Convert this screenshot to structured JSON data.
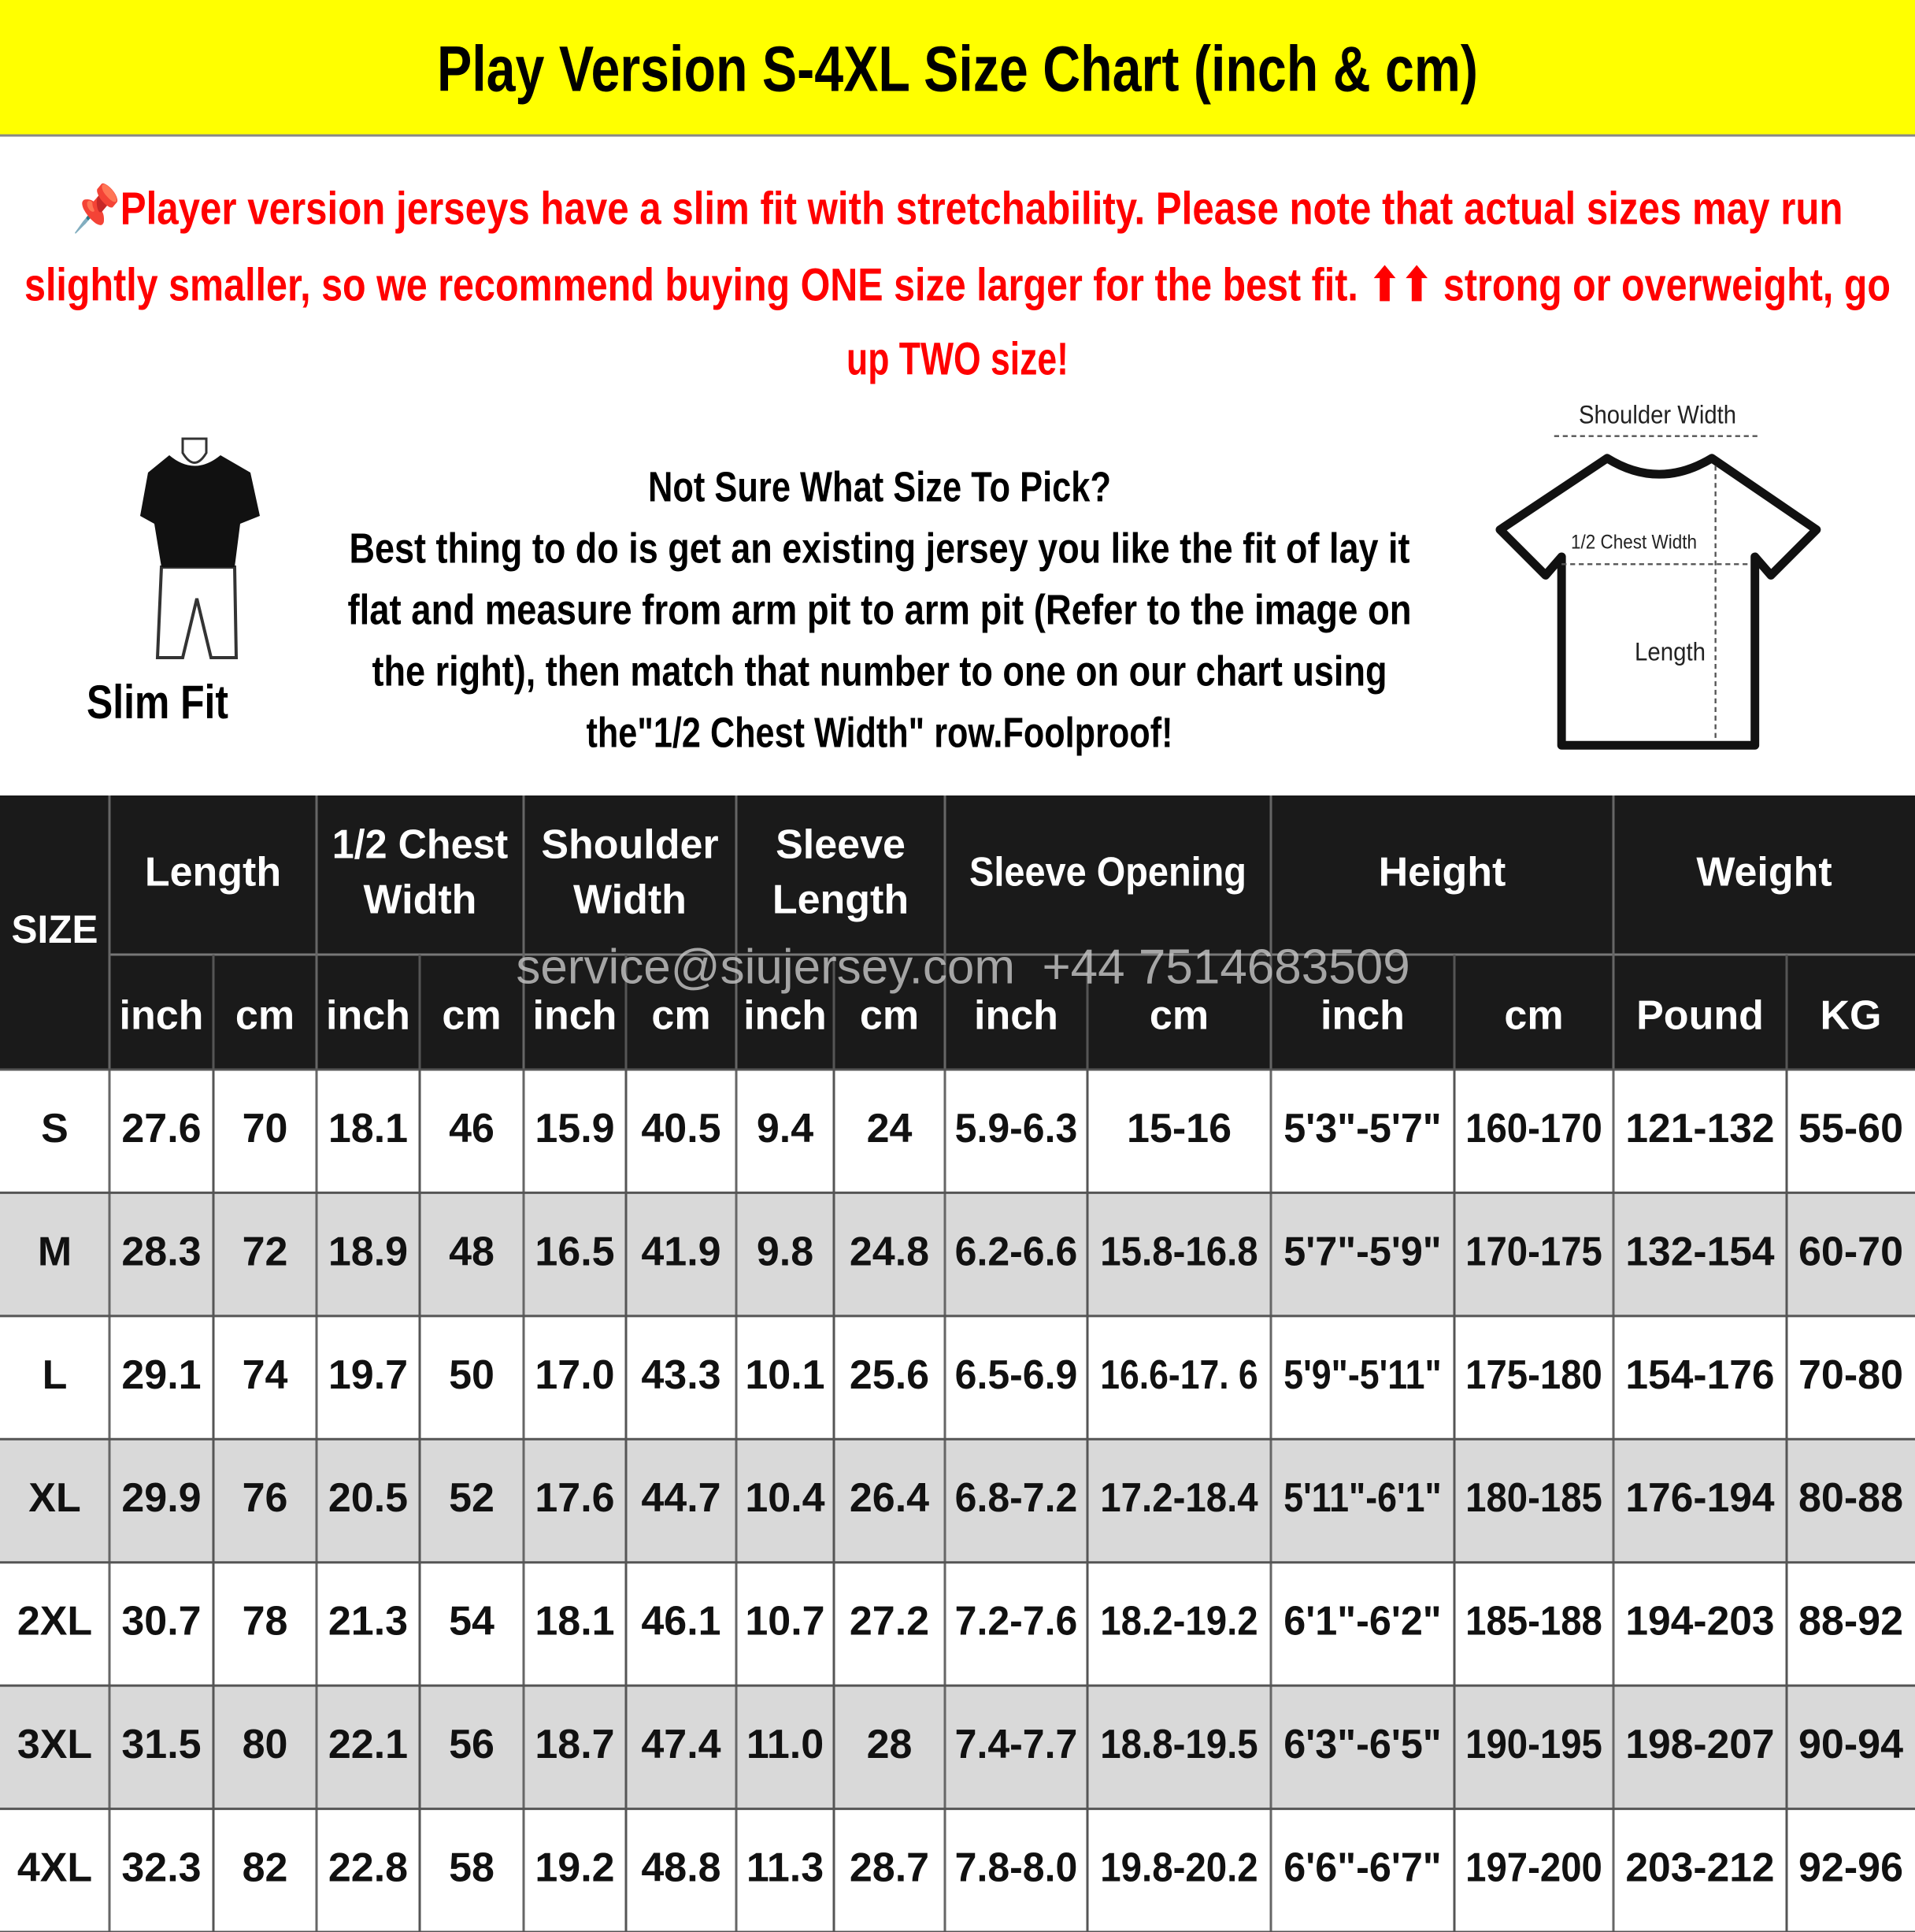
{
  "title": "Play Version S-4XL Size Chart (inch & cm)",
  "note_lines": [
    "📌Player version jerseys have a slim fit with stretchability. Please note that actual sizes may run",
    "slightly smaller, so we recommend buying ONE size larger for the best fit. ⬆⬆ strong or overweight, go",
    "up TWO size!"
  ],
  "slim_fit_label": "Slim Fit",
  "help": {
    "heading": "Not Sure What Size To Pick?",
    "lines": [
      "Best thing to do is get an existing jersey you like the fit of lay it",
      "flat and measure from arm pit to arm pit (Refer to the image on",
      "the right), then match that number to one on our chart using",
      "the\"1/2 Chest Width\" row.Foolproof!"
    ]
  },
  "diagram": {
    "shoulder": "Shoulder Width",
    "chest": "1/2 Chest Width",
    "length": "Length"
  },
  "watermark": "service@siujersey.com  +44 7514683509",
  "table": {
    "size_header": "SIZE",
    "groups": [
      [
        "Length"
      ],
      [
        "1/2 Chest",
        "Width"
      ],
      [
        "Shoulder",
        "Width"
      ],
      [
        "Sleeve",
        "Length"
      ],
      [
        "Sleeve Opening"
      ],
      [
        "Height"
      ],
      [
        "Weight"
      ]
    ],
    "units": [
      "inch",
      "cm",
      "inch",
      "cm",
      "inch",
      "cm",
      "inch",
      "cm",
      "inch",
      "cm",
      "inch",
      "cm",
      "Pound",
      "KG"
    ],
    "rows": [
      [
        "S",
        "27.6",
        "70",
        "18.1",
        "46",
        "15.9",
        "40.5",
        "9.4",
        "24",
        "5.9-6.3",
        "15-16",
        "5'3\"-5'7\"",
        "160-170",
        "121-132",
        "55-60"
      ],
      [
        "M",
        "28.3",
        "72",
        "18.9",
        "48",
        "16.5",
        "41.9",
        "9.8",
        "24.8",
        "6.2-6.6",
        "15.8-16.8",
        "5'7\"-5'9\"",
        "170-175",
        "132-154",
        "60-70"
      ],
      [
        "L",
        "29.1",
        "74",
        "19.7",
        "50",
        "17.0",
        "43.3",
        "10.1",
        "25.6",
        "6.5-6.9",
        "16.6-17. 6",
        "5'9\"-5'11\"",
        "175-180",
        "154-176",
        "70-80"
      ],
      [
        "XL",
        "29.9",
        "76",
        "20.5",
        "52",
        "17.6",
        "44.7",
        "10.4",
        "26.4",
        "6.8-7.2",
        "17.2-18.4",
        "5'11\"-6'1\"",
        "180-185",
        "176-194",
        "80-88"
      ],
      [
        "2XL",
        "30.7",
        "78",
        "21.3",
        "54",
        "18.1",
        "46.1",
        "10.7",
        "27.2",
        "7.2-7.6",
        "18.2-19.2",
        "6'1\"-6'2\"",
        "185-188",
        "194-203",
        "88-92"
      ],
      [
        "3XL",
        "31.5",
        "80",
        "22.1",
        "56",
        "18.7",
        "47.4",
        "11.0",
        "28",
        "7.4-7.7",
        "18.8-19.5",
        "6'3\"-6'5\"",
        "190-195",
        "198-207",
        "90-94"
      ],
      [
        "4XL",
        "32.3",
        "82",
        "22.8",
        "58",
        "19.2",
        "48.8",
        "11.3",
        "28.7",
        "7.8-8.0",
        "19.8-20.2",
        "6'6\"-6'7\"",
        "197-200",
        "203-212",
        "92-96"
      ]
    ]
  }
}
